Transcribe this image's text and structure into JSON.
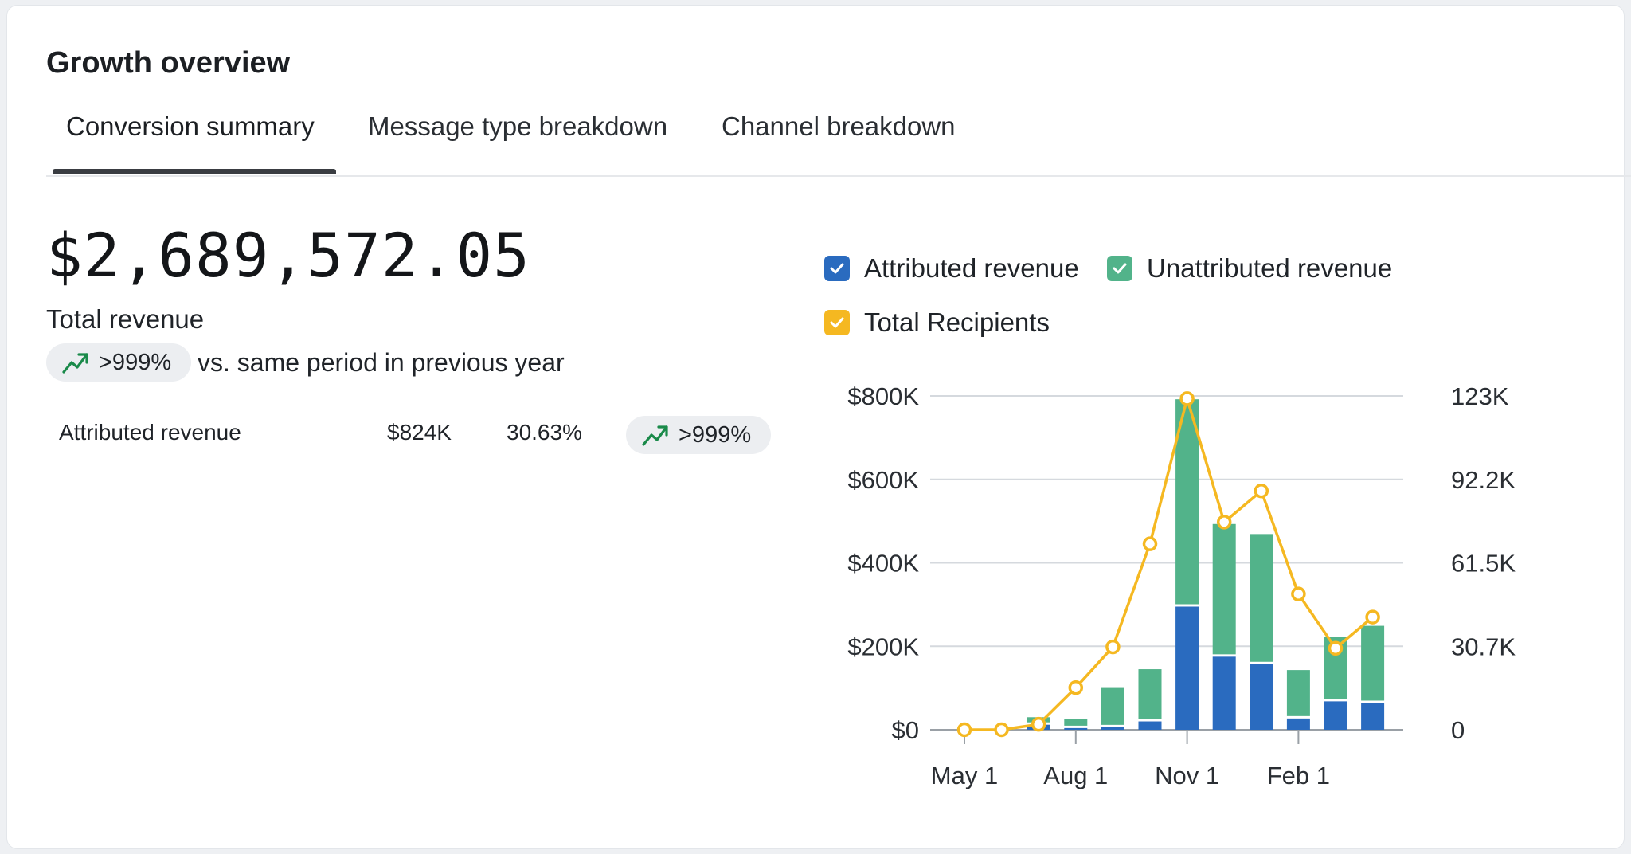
{
  "header": {
    "title": "Growth overview"
  },
  "tabs": [
    {
      "label": "Conversion summary",
      "active": true
    },
    {
      "label": "Message type breakdown",
      "active": false
    },
    {
      "label": "Channel breakdown",
      "active": false
    }
  ],
  "summary": {
    "total_value": "$2,689,572.05",
    "total_label": "Total revenue",
    "change_badge": ">999%",
    "change_text": "vs. same period in previous year"
  },
  "breakdown_row": {
    "label": "Attributed revenue",
    "value": "$824K",
    "percent": "30.63%",
    "change_badge": ">999%"
  },
  "legend": [
    {
      "label": "Attributed revenue",
      "color": "#2a6bbf"
    },
    {
      "label": "Unattributed revenue",
      "color": "#52b38a"
    },
    {
      "label": "Total Recipients",
      "color": "#f5b821"
    }
  ],
  "colors": {
    "trend_up": "#1a8a4a"
  },
  "chart_data": {
    "type": "bar",
    "stacked": true,
    "x_tick_labels": [
      "May 1",
      "Aug 1",
      "Nov 1",
      "Feb 1"
    ],
    "y_left_ticks": [
      "$0",
      "$200K",
      "$400K",
      "$600K",
      "$800K"
    ],
    "y_left_range": [
      0,
      800000
    ],
    "y_right_ticks": [
      "0",
      "30.7K",
      "61.5K",
      "92.2K",
      "123K"
    ],
    "y_right_range": [
      0,
      123000
    ],
    "series": [
      {
        "name": "Attributed revenue",
        "axis": "left",
        "kind": "bar",
        "values": [
          0,
          0,
          12000,
          4000,
          6000,
          20000,
          295000,
          175000,
          157000,
          27000,
          68000,
          64000
        ]
      },
      {
        "name": "Unattributed revenue",
        "axis": "left",
        "kind": "bar",
        "values": [
          0,
          2000,
          18000,
          22000,
          96000,
          125000,
          497000,
          318000,
          312000,
          116000,
          154000,
          185000
        ]
      },
      {
        "name": "Total Recipients",
        "axis": "right",
        "kind": "line",
        "values": [
          0,
          0,
          2000,
          15500,
          30500,
          68500,
          122000,
          76500,
          88000,
          50000,
          30000,
          41500
        ]
      }
    ],
    "grid": true,
    "legend_position": "top-left"
  }
}
